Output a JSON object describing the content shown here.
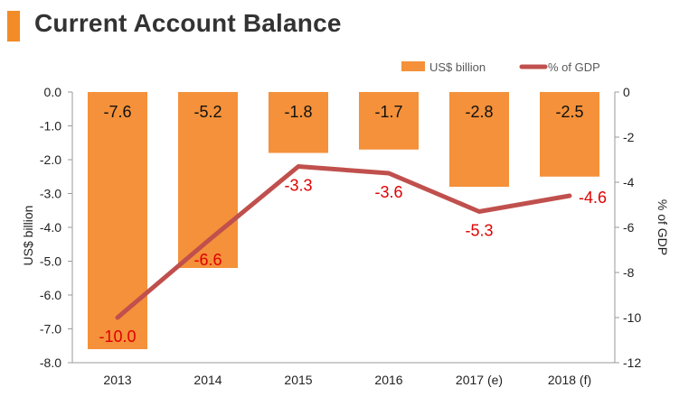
{
  "title": "Current Account Balance",
  "colors": {
    "accent": "#f28c28",
    "bar": "#f4913a",
    "line": "#c0504d",
    "line_label": "#e00000",
    "axis": "#9a9a9a"
  },
  "chart_data": {
    "type": "bar",
    "categories": [
      "2013",
      "2014",
      "2015",
      "2016",
      "2017 (e)",
      "2018 (f)"
    ],
    "series": [
      {
        "name": "US$ billion",
        "type": "bar",
        "axis": "left",
        "values": [
          -7.6,
          -5.2,
          -1.8,
          -1.7,
          -2.8,
          -2.5
        ],
        "data_labels": [
          "-7.6",
          "-5.2",
          "-1.8",
          "-1.7",
          "-2.8",
          "-2.5"
        ]
      },
      {
        "name": "% of GDP",
        "type": "line",
        "axis": "right",
        "values": [
          -10.0,
          -6.6,
          -3.3,
          -3.6,
          -5.3,
          -4.6
        ],
        "data_labels": [
          "-10.0",
          "-6.6",
          "-3.3",
          "-3.6",
          "-5.3",
          "-4.6"
        ]
      }
    ],
    "ylabel": "US$ billion",
    "y2label": "% of GDP",
    "ylim": [
      -8.0,
      0.0
    ],
    "y2lim": [
      -12,
      0
    ],
    "yticks": [
      "0.0",
      "-1.0",
      "-2.0",
      "-3.0",
      "-4.0",
      "-5.0",
      "-6.0",
      "-7.0",
      "-8.0"
    ],
    "y2ticks": [
      "0",
      "-2",
      "-4",
      "-6",
      "-8",
      "-10",
      "-12"
    ],
    "legend_position": "top-right",
    "grid": false
  }
}
